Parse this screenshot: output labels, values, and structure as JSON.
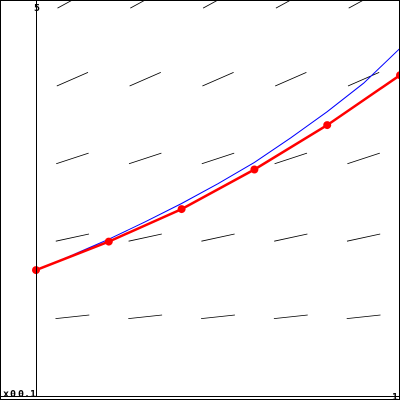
{
  "chart_data": {
    "type": "line",
    "title": "",
    "xlabel": "",
    "ylabel": "",
    "xlim": [
      0,
      1
    ],
    "ylim": [
      0,
      5
    ],
    "tick_labels": {
      "x_min": "0",
      "x_max": "1",
      "y_min": "0.1",
      "y_max": "5",
      "origin_mark": "x"
    },
    "grid": false,
    "slope_field": {
      "x": [
        0.1,
        0.3,
        0.5,
        0.7,
        0.9
      ],
      "y": [
        1,
        2,
        3,
        4,
        5
      ]
    },
    "series": [
      {
        "color": "#0000ff",
        "style": "smooth",
        "x": [
          0,
          0.1,
          0.2,
          0.3,
          0.4,
          0.5,
          0.6,
          0.7,
          0.8,
          0.9,
          1.0
        ],
        "y": [
          1.59,
          1.78,
          1.98,
          2.2,
          2.43,
          2.68,
          2.95,
          3.26,
          3.59,
          3.95,
          4.39
        ]
      },
      {
        "color": "#ff0000",
        "style": "euler-markers",
        "x": [
          0,
          0.2,
          0.4,
          0.6,
          0.8,
          1.0
        ],
        "y": [
          1.59,
          1.95,
          2.36,
          2.86,
          3.42,
          4.05
        ]
      }
    ]
  }
}
